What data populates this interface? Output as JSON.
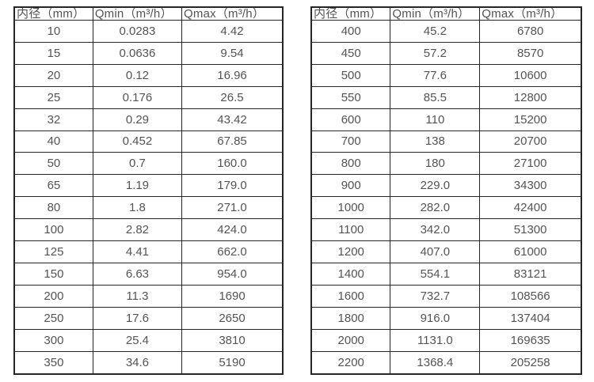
{
  "colors": {
    "background": "#ffffff",
    "border": "#262626",
    "text": "#545454"
  },
  "tables": [
    {
      "headers": [
        "内径（mm）",
        "Qmin（m³/h）",
        "Qmax（m³/h）"
      ],
      "rows": [
        [
          "10",
          "0.0283",
          "4.42"
        ],
        [
          "15",
          "0.0636",
          "9.54"
        ],
        [
          "20",
          "0.12",
          "16.96"
        ],
        [
          "25",
          "0.176",
          "26.5"
        ],
        [
          "32",
          "0.29",
          "43.42"
        ],
        [
          "40",
          "0.452",
          "67.85"
        ],
        [
          "50",
          "0.7",
          "160.0"
        ],
        [
          "65",
          "1.19",
          "179.0"
        ],
        [
          "80",
          "1.8",
          "271.0"
        ],
        [
          "100",
          "2.82",
          "424.0"
        ],
        [
          "125",
          "4.41",
          "662.0"
        ],
        [
          "150",
          "6.63",
          "954.0"
        ],
        [
          "200",
          "11.3",
          "1690"
        ],
        [
          "250",
          "17.6",
          "2650"
        ],
        [
          "300",
          "25.4",
          "3810"
        ],
        [
          "350",
          "34.6",
          "5190"
        ]
      ]
    },
    {
      "headers": [
        "内径（mm）",
        "Qmin（m³/h）",
        "Qmax（m³/h）"
      ],
      "rows": [
        [
          "400",
          "45.2",
          "6780"
        ],
        [
          "450",
          "57.2",
          "8570"
        ],
        [
          "500",
          "77.6",
          "10600"
        ],
        [
          "550",
          "85.5",
          "12800"
        ],
        [
          "600",
          "110",
          "15200"
        ],
        [
          "700",
          "138",
          "20700"
        ],
        [
          "800",
          "180",
          "27100"
        ],
        [
          "900",
          "229.0",
          "34300"
        ],
        [
          "1000",
          "282.0",
          "42400"
        ],
        [
          "1100",
          "342.0",
          "51300"
        ],
        [
          "1200",
          "407.0",
          "61000"
        ],
        [
          "1400",
          "554.1",
          "83121"
        ],
        [
          "1600",
          "732.7",
          "108566"
        ],
        [
          "1800",
          "916.0",
          "137404"
        ],
        [
          "2000",
          "1131.0",
          "169635"
        ],
        [
          "2200",
          "1368.4",
          "205258"
        ]
      ]
    }
  ]
}
